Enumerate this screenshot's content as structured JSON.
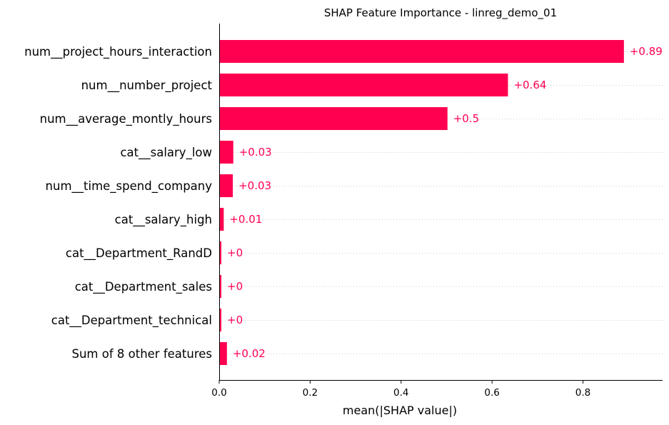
{
  "chart_data": {
    "type": "bar",
    "orientation": "horizontal",
    "title": "SHAP Feature Importance - linreg_demo_01",
    "xlabel": "mean(|SHAP value|)",
    "ylabel": "",
    "xlim": [
      0,
      0.975
    ],
    "xticks": [
      0,
      0.2,
      0.4,
      0.6,
      0.8
    ],
    "xtick_labels": [
      "0.0",
      "0.2",
      "0.4",
      "0.6",
      "0.8"
    ],
    "bar_color": "#ff0051",
    "gridlines": "dotted horizontal per bar",
    "categories": [
      "num__project_hours_interaction",
      "num__number_project",
      "num__average_montly_hours",
      "cat__salary_low",
      "num__time_spend_company",
      "cat__salary_high",
      "cat__Department_RandD",
      "cat__Department_sales",
      "cat__Department_technical",
      "Sum of 8 other features"
    ],
    "values": [
      0.89,
      0.635,
      0.502,
      0.031,
      0.03,
      0.01,
      0.004,
      0.004,
      0.004,
      0.017
    ],
    "data_labels": [
      "+0.89",
      "+0.64",
      "+0.5",
      "+0.03",
      "+0.03",
      "+0.01",
      "+0",
      "+0",
      "+0",
      "+0.02"
    ]
  }
}
